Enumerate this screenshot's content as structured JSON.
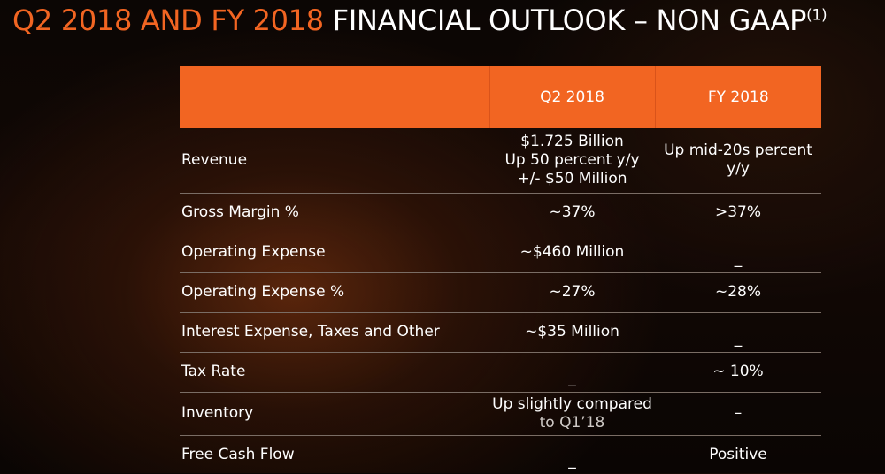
{
  "title": {
    "accent": "Q2 2018 AND FY 2018",
    "main": "FINANCIAL OUTLOOK – NON GAAP",
    "footnote_mark": "(1)"
  },
  "table": {
    "columns": [
      "",
      "Q2 2018",
      "FY 2018"
    ],
    "rows": [
      {
        "label": "Revenue",
        "q2": [
          "$1.725 Billion",
          "Up 50 percent y/y",
          "+/- $50 Million"
        ],
        "fy": [
          "Up mid-20s percent",
          "y/y"
        ]
      },
      {
        "label": "Gross Margin %",
        "q2": [
          "~37%"
        ],
        "fy": [
          ">37%"
        ]
      },
      {
        "label": "Operating Expense",
        "q2": [
          "~$460 Million"
        ],
        "fy": [
          "_"
        ]
      },
      {
        "label": "Operating Expense %",
        "q2": [
          "~27%"
        ],
        "fy": [
          "~28%"
        ]
      },
      {
        "label": "Interest Expense, Taxes and Other",
        "q2": [
          "~$35 Million"
        ],
        "fy": [
          "_"
        ]
      },
      {
        "label": "Tax Rate",
        "q2": [
          "_"
        ],
        "fy": [
          "~ 10%"
        ]
      },
      {
        "label": "Inventory",
        "q2": [
          "Up slightly compared",
          "to Q1’18"
        ],
        "fy": [
          "–"
        ]
      },
      {
        "label": "Free Cash Flow",
        "q2": [
          "_"
        ],
        "fy": [
          "Positive"
        ]
      }
    ]
  },
  "colors": {
    "accent": "#f26522",
    "header_fill": "#f26522",
    "row_divider": "#7a6d65",
    "text": "#ffffff",
    "background": "#0b0604"
  }
}
